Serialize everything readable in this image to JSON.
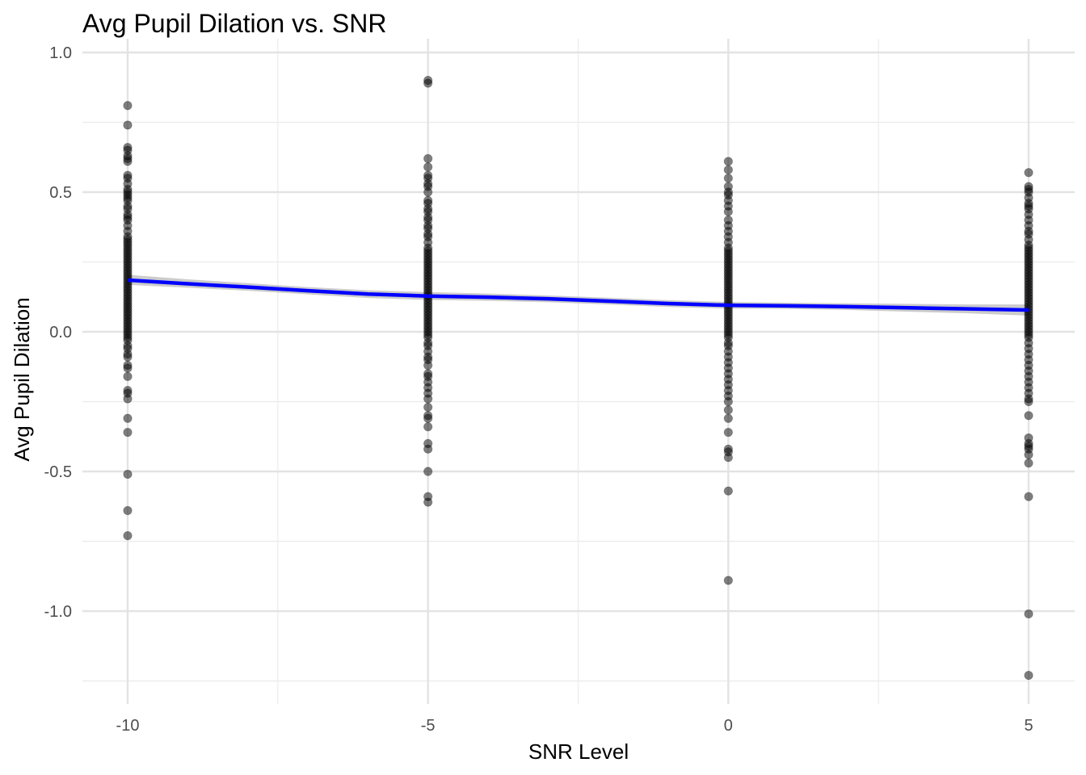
{
  "chart_data": {
    "type": "scatter",
    "title": "Avg Pupil Dilation vs. SNR",
    "xlabel": "SNR Level",
    "ylabel": "Avg Pupil Dilation",
    "xlim": [
      -11.5,
      6.5
    ],
    "ylim": [
      -1.3,
      1.0
    ],
    "x_ticks": [
      {
        "value": -10,
        "label": "-10"
      },
      {
        "value": -5,
        "label": "-5"
      },
      {
        "value": 0,
        "label": "0"
      },
      {
        "value": 5,
        "label": "5"
      }
    ],
    "y_ticks": [
      {
        "value": 1.0,
        "label": "1.0"
      },
      {
        "value": 0.5,
        "label": "0.5"
      },
      {
        "value": 0.0,
        "label": "0.0"
      },
      {
        "value": -0.5,
        "label": "-0.5"
      },
      {
        "value": -1.0,
        "label": "-1.0"
      }
    ],
    "x_minor_gridlines": [
      -7.5,
      -2.5,
      2.5
    ],
    "y_minor_gridlines": [
      0.75,
      0.25,
      -0.25,
      -0.75,
      -1.25
    ],
    "grid": true,
    "point_color": "#000000",
    "point_opacity": 0.5,
    "smooth_color": "#0000ff",
    "ribbon_color": "#999999",
    "points": [
      {
        "x": -10,
        "y": [
          0.81,
          0.74,
          0.66,
          0.65,
          0.63,
          0.62,
          0.61,
          0.56,
          0.55,
          0.53,
          0.51,
          0.5,
          0.49,
          0.48,
          0.47,
          0.45,
          0.44,
          0.42,
          0.41,
          0.4,
          0.38,
          0.36,
          0.34,
          0.33,
          0.32,
          0.31,
          0.3,
          0.29,
          0.28,
          0.27,
          0.26,
          0.25,
          0.24,
          0.23,
          0.22,
          0.21,
          0.2,
          0.19,
          0.18,
          0.17,
          0.16,
          0.15,
          0.14,
          0.13,
          0.12,
          0.11,
          0.1,
          0.09,
          0.08,
          0.07,
          0.06,
          0.05,
          0.04,
          0.03,
          0.02,
          0.01,
          0.0,
          -0.01,
          -0.02,
          -0.03,
          -0.05,
          -0.06,
          -0.08,
          -0.09,
          -0.12,
          -0.13,
          -0.16,
          -0.21,
          -0.22,
          -0.24,
          -0.31,
          -0.36,
          -0.51,
          -0.64,
          -0.73
        ]
      },
      {
        "x": -5,
        "y": [
          0.9,
          0.89,
          0.62,
          0.59,
          0.56,
          0.55,
          0.53,
          0.52,
          0.5,
          0.47,
          0.46,
          0.44,
          0.43,
          0.41,
          0.4,
          0.38,
          0.37,
          0.35,
          0.34,
          0.32,
          0.3,
          0.29,
          0.28,
          0.27,
          0.26,
          0.25,
          0.24,
          0.23,
          0.22,
          0.21,
          0.2,
          0.19,
          0.18,
          0.17,
          0.16,
          0.15,
          0.14,
          0.13,
          0.12,
          0.11,
          0.1,
          0.09,
          0.08,
          0.07,
          0.06,
          0.05,
          0.04,
          0.03,
          0.02,
          0.01,
          0.0,
          -0.01,
          -0.02,
          -0.04,
          -0.05,
          -0.07,
          -0.09,
          -0.1,
          -0.12,
          -0.15,
          -0.16,
          -0.18,
          -0.2,
          -0.22,
          -0.24,
          -0.27,
          -0.3,
          -0.31,
          -0.34,
          -0.4,
          -0.42,
          -0.5,
          -0.59,
          -0.61
        ]
      },
      {
        "x": 0,
        "y": [
          0.61,
          0.58,
          0.55,
          0.52,
          0.5,
          0.49,
          0.47,
          0.45,
          0.43,
          0.4,
          0.38,
          0.36,
          0.34,
          0.32,
          0.3,
          0.29,
          0.28,
          0.27,
          0.26,
          0.25,
          0.24,
          0.23,
          0.22,
          0.21,
          0.2,
          0.19,
          0.18,
          0.17,
          0.16,
          0.15,
          0.14,
          0.13,
          0.12,
          0.11,
          0.1,
          0.09,
          0.08,
          0.07,
          0.06,
          0.05,
          0.04,
          0.03,
          0.02,
          0.01,
          0.0,
          -0.01,
          -0.02,
          -0.04,
          -0.05,
          -0.07,
          -0.09,
          -0.11,
          -0.13,
          -0.15,
          -0.17,
          -0.19,
          -0.21,
          -0.23,
          -0.25,
          -0.28,
          -0.31,
          -0.36,
          -0.42,
          -0.43,
          -0.45,
          -0.57,
          -0.89
        ]
      },
      {
        "x": 5,
        "y": [
          0.57,
          0.52,
          0.51,
          0.5,
          0.48,
          0.46,
          0.45,
          0.44,
          0.42,
          0.4,
          0.38,
          0.36,
          0.35,
          0.33,
          0.31,
          0.3,
          0.29,
          0.28,
          0.27,
          0.26,
          0.25,
          0.24,
          0.23,
          0.22,
          0.21,
          0.2,
          0.19,
          0.18,
          0.17,
          0.16,
          0.15,
          0.14,
          0.13,
          0.12,
          0.11,
          0.1,
          0.09,
          0.08,
          0.07,
          0.06,
          0.05,
          0.04,
          0.03,
          0.02,
          0.01,
          0.0,
          -0.01,
          -0.02,
          -0.04,
          -0.06,
          -0.08,
          -0.1,
          -0.12,
          -0.14,
          -0.16,
          -0.18,
          -0.2,
          -0.22,
          -0.24,
          -0.25,
          -0.3,
          -0.38,
          -0.4,
          -0.41,
          -0.42,
          -0.44,
          -0.47,
          -0.59,
          -1.01,
          -1.23
        ]
      }
    ],
    "smooth": {
      "x": [
        -10,
        -9,
        -8,
        -7,
        -6,
        -5,
        -4,
        -3,
        -2,
        -1,
        0,
        1,
        2,
        3,
        4,
        5
      ],
      "y": [
        0.185,
        0.172,
        0.16,
        0.147,
        0.135,
        0.128,
        0.124,
        0.118,
        0.11,
        0.101,
        0.095,
        0.093,
        0.09,
        0.086,
        0.082,
        0.078
      ],
      "lower": [
        0.168,
        0.158,
        0.147,
        0.134,
        0.121,
        0.114,
        0.111,
        0.106,
        0.098,
        0.089,
        0.083,
        0.082,
        0.078,
        0.072,
        0.066,
        0.058
      ],
      "upper": [
        0.204,
        0.188,
        0.174,
        0.16,
        0.149,
        0.142,
        0.137,
        0.13,
        0.122,
        0.113,
        0.107,
        0.104,
        0.102,
        0.1,
        0.098,
        0.098
      ]
    }
  }
}
